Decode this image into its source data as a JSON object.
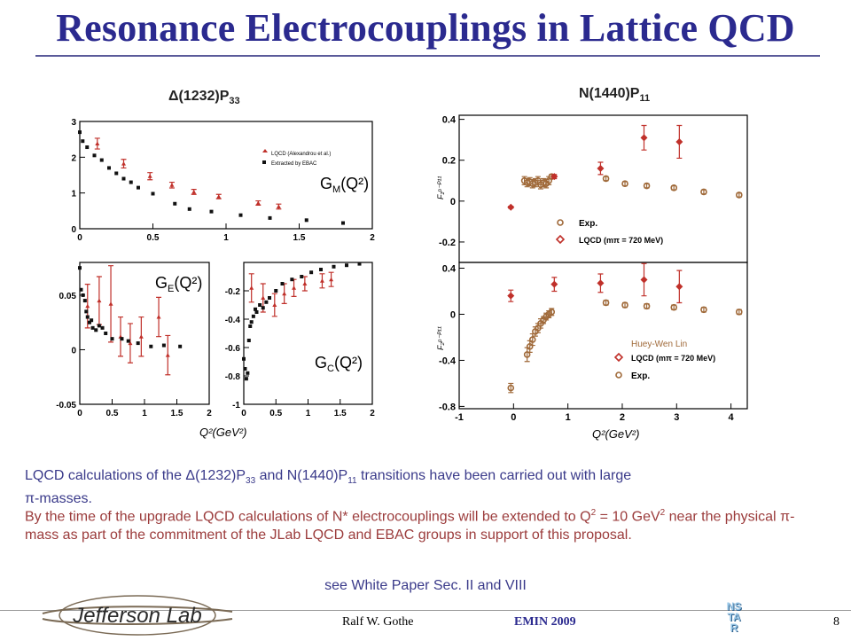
{
  "title": "Resonance Electrocouplings in Lattice QCD",
  "left_panel": {
    "name": "Δ(1232)P",
    "sub": "33"
  },
  "right_panel": {
    "name": "N(1440)P",
    "sub": "11"
  },
  "gm": {
    "ylabel_main": "G",
    "ylabel_sub": "M",
    "ylabel_rest": "(Q²)",
    "yticks": [
      "0",
      "1",
      "2",
      "3"
    ],
    "xticks": [
      "0",
      "0.5",
      "1",
      "1.5",
      "2"
    ],
    "legend_lqcd": "LQCD (Alexandrou et al.)",
    "legend_ebac": "Extracted by EBAC"
  },
  "ge": {
    "ylabel_main": "G",
    "ylabel_sub": "E",
    "ylabel_rest": "(Q²)",
    "yticks": [
      "-0.05",
      "0",
      "0.05"
    ],
    "xticks": [
      "0",
      "0.5",
      "1",
      "1.5",
      "2"
    ]
  },
  "gc": {
    "ylabel_main": "G",
    "ylabel_sub": "C",
    "ylabel_rest": "(Q²)",
    "yticks": [
      "-1",
      "-0.8",
      "-0.6",
      "-0.4",
      "-0.2"
    ],
    "xticks": [
      "0",
      "0.5",
      "1",
      "1.5",
      "2"
    ]
  },
  "left_xlabel": "Q²(GeV²)",
  "f1": {
    "ylabel": "F₁ᵖ⁻ᴾ¹¹",
    "yticks": [
      "-0.2",
      "0",
      "0.2",
      "0.4"
    ],
    "legend_exp": "Exp.",
    "legend_lqcd": "LQCD (mπ = 720 MeV)"
  },
  "f2": {
    "ylabel": "F₂ᵖ⁻ᴾ¹¹",
    "yticks": [
      "-0.8",
      "-0.4",
      "0",
      "0.4"
    ],
    "xticks": [
      "-1",
      "0",
      "1",
      "2",
      "3",
      "4"
    ],
    "legend_exp": "Exp.",
    "legend_lqcd": "LQCD (mπ = 720 MeV)",
    "credit": "Huey-Wen Lin"
  },
  "right_xlabel": "Q²(GeV²)",
  "text": {
    "line1_a": "LQCD calculations of the Δ(1232)P",
    "line1_sub1": "33",
    "line1_b": " and N(1440)P",
    "line1_sub2": "11",
    "line1_c": " transitions have been carried out with large",
    "line2": "π-masses.",
    "para2_a": "By the time of the upgrade LQCD calculations of N* electrocouplings will be extended to Q",
    "para2_sup1": "2",
    "para2_b": " = 10 GeV",
    "para2_sup2": "2",
    "para2_c": " near the physical π-mass as part of the commitment of the JLab LQCD and EBAC groups in support of this proposal.",
    "see": "see White Paper Sec. II and VIII"
  },
  "footer": {
    "logo": "Jefferson Lab",
    "author": "Ralf  W. Gothe",
    "conf": "EMIN 2009",
    "page": "8",
    "badge": [
      "NS",
      "TA",
      "R"
    ]
  },
  "colors": {
    "title": "#2b2a8f",
    "lqcd": "#c0302a",
    "exp": "#a06a3a",
    "ebac": "#111111",
    "text_blue": "#3a3a8a",
    "text_red": "#9b3b3b"
  },
  "chart_data": [
    {
      "type": "scatter",
      "id": "gm",
      "xlim": [
        0,
        2
      ],
      "ylim": [
        0,
        3
      ],
      "series": [
        {
          "name": "LQCD (Alexandrou et al.)",
          "color": "#c0302a",
          "marker": "triangle",
          "x": [
            0.12,
            0.3,
            0.48,
            0.63,
            0.78,
            0.95,
            1.22,
            1.36
          ],
          "y": [
            2.38,
            1.82,
            1.47,
            1.22,
            1.03,
            0.9,
            0.72,
            0.62
          ],
          "err": [
            0.15,
            0.12,
            0.1,
            0.08,
            0.07,
            0.06,
            0.06,
            0.07
          ]
        },
        {
          "name": "Extracted by EBAC",
          "color": "#111111",
          "marker": "square",
          "x": [
            0.0,
            0.02,
            0.05,
            0.1,
            0.15,
            0.2,
            0.25,
            0.3,
            0.35,
            0.4,
            0.5,
            0.65,
            0.75,
            0.9,
            1.1,
            1.3,
            1.55,
            1.8
          ],
          "y": [
            2.7,
            2.45,
            2.28,
            2.05,
            1.92,
            1.7,
            1.55,
            1.4,
            1.3,
            1.15,
            0.98,
            0.7,
            0.55,
            0.48,
            0.38,
            0.3,
            0.24,
            0.16
          ]
        }
      ]
    },
    {
      "type": "scatter",
      "id": "ge",
      "xlim": [
        0,
        2
      ],
      "ylim": [
        -0.05,
        0.08
      ],
      "series": [
        {
          "name": "LQCD",
          "color": "#c0302a",
          "marker": "triangle",
          "x": [
            0.12,
            0.3,
            0.48,
            0.63,
            0.78,
            0.95,
            1.22,
            1.36
          ],
          "y": [
            0.04,
            0.045,
            0.042,
            0.012,
            0.006,
            0.012,
            0.03,
            -0.005
          ],
          "err": [
            0.02,
            0.022,
            0.035,
            0.018,
            0.018,
            0.018,
            0.018,
            0.018
          ]
        },
        {
          "name": "EBAC",
          "color": "#111111",
          "marker": "square",
          "x": [
            0.0,
            0.02,
            0.05,
            0.08,
            0.1,
            0.12,
            0.15,
            0.18,
            0.2,
            0.25,
            0.3,
            0.35,
            0.4,
            0.5,
            0.65,
            0.75,
            0.9,
            1.1,
            1.3,
            1.55
          ],
          "y": [
            0.075,
            0.055,
            0.05,
            0.045,
            0.035,
            0.03,
            0.025,
            0.027,
            0.02,
            0.018,
            0.022,
            0.02,
            0.015,
            0.01,
            0.01,
            0.008,
            0.006,
            0.003,
            0.004,
            0.003
          ]
        }
      ]
    },
    {
      "type": "scatter",
      "id": "gc",
      "xlim": [
        0,
        2
      ],
      "ylim": [
        -1,
        0
      ],
      "series": [
        {
          "name": "LQCD",
          "color": "#c0302a",
          "marker": "triangle",
          "x": [
            0.12,
            0.3,
            0.48,
            0.63,
            0.78,
            0.95,
            1.22,
            1.36
          ],
          "y": [
            -0.18,
            -0.25,
            -0.3,
            -0.22,
            -0.18,
            -0.15,
            -0.13,
            -0.12
          ],
          "err": [
            0.1,
            0.1,
            0.08,
            0.07,
            0.06,
            0.05,
            0.05,
            0.05
          ]
        },
        {
          "name": "EBAC",
          "color": "#111111",
          "marker": "square",
          "x": [
            0.0,
            0.02,
            0.04,
            0.06,
            0.08,
            0.1,
            0.12,
            0.15,
            0.18,
            0.2,
            0.25,
            0.3,
            0.35,
            0.4,
            0.5,
            0.6,
            0.75,
            0.9,
            1.05,
            1.2,
            1.4,
            1.6,
            1.8
          ],
          "y": [
            -0.68,
            -0.75,
            -0.82,
            -0.78,
            -0.55,
            -0.45,
            -0.42,
            -0.38,
            -0.33,
            -0.35,
            -0.3,
            -0.32,
            -0.28,
            -0.25,
            -0.2,
            -0.15,
            -0.12,
            -0.1,
            -0.07,
            -0.05,
            -0.03,
            -0.02,
            -0.01
          ]
        }
      ]
    },
    {
      "type": "scatter",
      "id": "f1",
      "xlim": [
        -1,
        4.3
      ],
      "ylim": [
        -0.3,
        0.42
      ],
      "series": [
        {
          "name": "Exp.",
          "color": "#a06a3a",
          "marker": "circle",
          "x": [
            0.2,
            0.25,
            0.3,
            0.35,
            0.4,
            0.45,
            0.5,
            0.55,
            0.6,
            0.65,
            0.7,
            1.7,
            2.05,
            2.45,
            2.95,
            3.5,
            4.15
          ],
          "y": [
            0.1,
            0.09,
            0.095,
            0.085,
            0.09,
            0.1,
            0.08,
            0.09,
            0.085,
            0.1,
            0.12,
            0.11,
            0.085,
            0.075,
            0.065,
            0.045,
            0.03
          ],
          "err": [
            0.02,
            0.02,
            0.02,
            0.02,
            0.02,
            0.02,
            0.02,
            0.02,
            0.02,
            0.02,
            0.01,
            0.01,
            0.01,
            0.01,
            0.01,
            0.01,
            0.01
          ]
        },
        {
          "name": "LQCD (mπ = 720 MeV)",
          "color": "#c0302a",
          "marker": "diamond",
          "x": [
            -0.05,
            0.75,
            1.6,
            2.4,
            3.05
          ],
          "y": [
            -0.03,
            0.12,
            0.16,
            0.31,
            0.29
          ],
          "err": [
            0.005,
            0.01,
            0.03,
            0.06,
            0.08
          ]
        }
      ]
    },
    {
      "type": "scatter",
      "id": "f2",
      "xlim": [
        -1,
        4.3
      ],
      "ylim": [
        -0.82,
        0.45
      ],
      "series": [
        {
          "name": "Exp.",
          "color": "#a06a3a",
          "marker": "circle",
          "x": [
            -0.05,
            0.25,
            0.3,
            0.35,
            0.4,
            0.45,
            0.5,
            0.55,
            0.6,
            0.65,
            0.7,
            1.7,
            2.05,
            2.45,
            2.95,
            3.5,
            4.15
          ],
          "y": [
            -0.64,
            -0.35,
            -0.28,
            -0.22,
            -0.15,
            -0.12,
            -0.08,
            -0.05,
            -0.02,
            0.0,
            0.02,
            0.1,
            0.08,
            0.07,
            0.06,
            0.04,
            0.02
          ],
          "err": [
            0.04,
            0.06,
            0.05,
            0.05,
            0.04,
            0.04,
            0.04,
            0.03,
            0.03,
            0.03,
            0.03,
            0.02,
            0.02,
            0.02,
            0.02,
            0.02,
            0.02
          ]
        },
        {
          "name": "LQCD (mπ = 720 MeV)",
          "color": "#c0302a",
          "marker": "diamond",
          "x": [
            -0.05,
            0.75,
            1.6,
            2.4,
            3.05
          ],
          "y": [
            0.16,
            0.26,
            0.27,
            0.3,
            0.24
          ],
          "err": [
            0.05,
            0.06,
            0.08,
            0.14,
            0.14
          ]
        }
      ]
    }
  ]
}
